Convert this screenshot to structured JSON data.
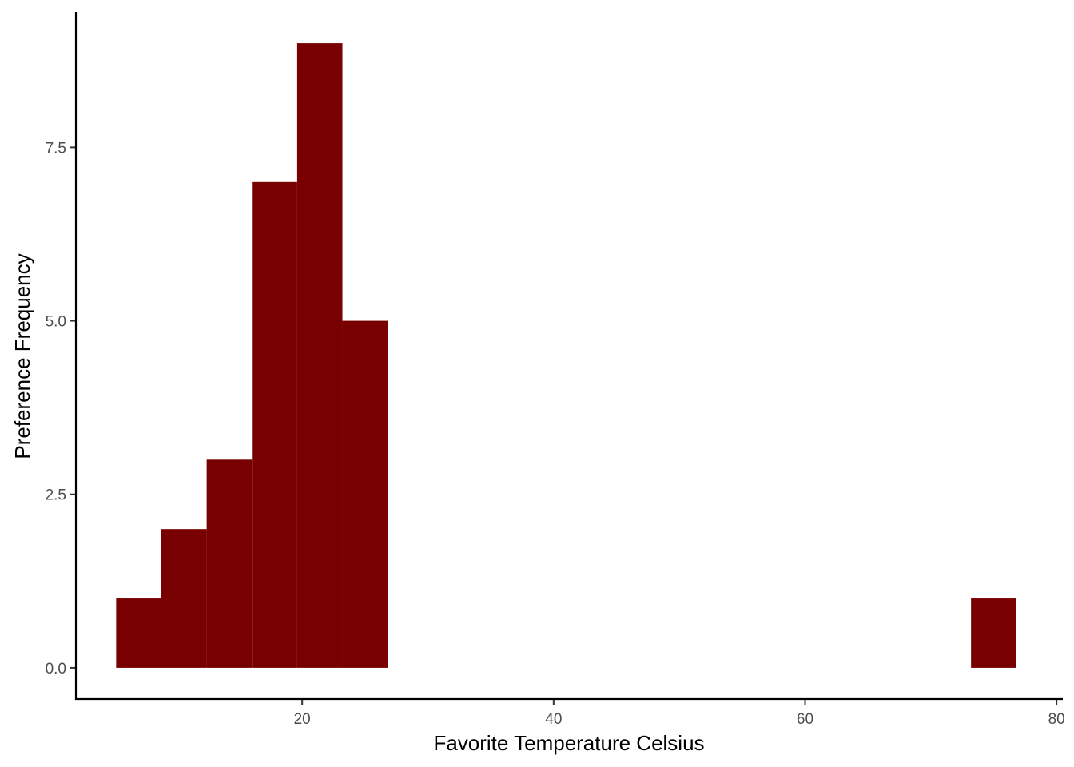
{
  "chart_data": {
    "type": "bar",
    "subtype": "histogram",
    "xlabel": "Favorite Temperature Celsius",
    "ylabel": "Preference Frequency",
    "xlim": [
      2,
      80.5
    ],
    "ylim": [
      -0.45,
      9.45
    ],
    "x_ticks": [
      20,
      40,
      60,
      80
    ],
    "y_ticks": [
      0.0,
      2.5,
      5.0,
      7.5
    ],
    "x_tick_labels": [
      "20",
      "40",
      "60",
      "80"
    ],
    "y_tick_labels": [
      "0.0",
      "2.5",
      "5.0",
      "7.5"
    ],
    "bins": [
      {
        "x0": 5.2,
        "x1": 8.8,
        "count": 1
      },
      {
        "x0": 8.8,
        "x1": 12.4,
        "count": 2
      },
      {
        "x0": 12.4,
        "x1": 16.0,
        "count": 3
      },
      {
        "x0": 16.0,
        "x1": 19.6,
        "count": 7
      },
      {
        "x0": 19.6,
        "x1": 23.2,
        "count": 9
      },
      {
        "x0": 23.2,
        "x1": 26.8,
        "count": 5
      },
      {
        "x0": 73.2,
        "x1": 76.8,
        "count": 1
      }
    ],
    "bar_color": "#780000",
    "grid": false,
    "legend": "none"
  }
}
